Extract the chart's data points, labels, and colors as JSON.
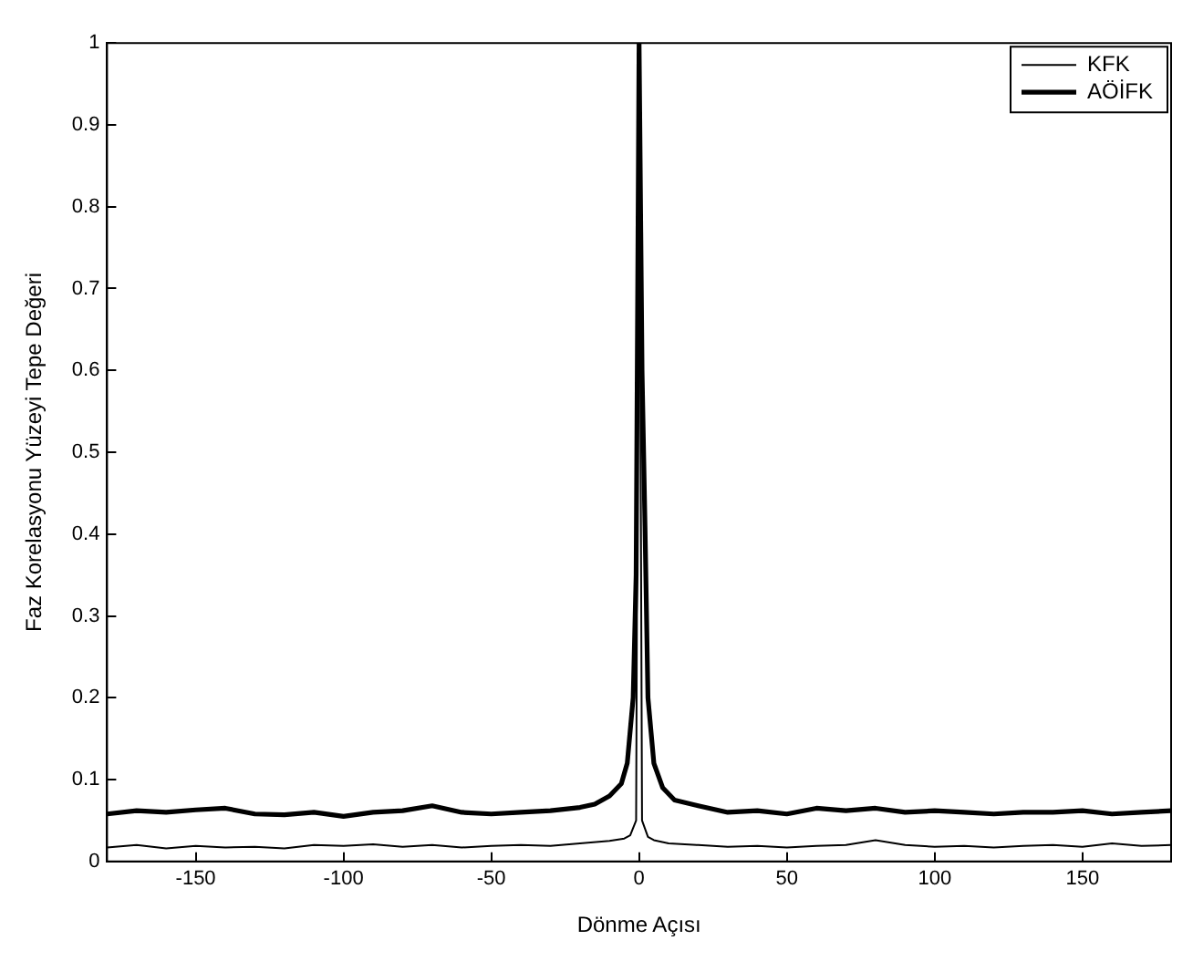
{
  "chart_data": {
    "type": "line",
    "xlabel": "Dönme Açısı",
    "ylabel": "Faz Korelasyonu Yüzeyi Tepe Değeri",
    "xlim": [
      -180,
      180
    ],
    "ylim": [
      0,
      1
    ],
    "xticks": [
      -150,
      -100,
      -50,
      0,
      50,
      100,
      150
    ],
    "yticks": [
      0,
      0.1,
      0.2,
      0.3,
      0.4,
      0.5,
      0.6,
      0.7,
      0.8,
      0.9,
      1
    ],
    "grid": false,
    "legend": "top right",
    "marker": "none",
    "line_style": "solid",
    "series": [
      {
        "name": "KFK",
        "color": "#000000",
        "x": [
          -180,
          -170,
          -160,
          -150,
          -140,
          -130,
          -120,
          -110,
          -100,
          -90,
          -80,
          -70,
          -60,
          -50,
          -40,
          -30,
          -20,
          -10,
          -5,
          -3,
          -1,
          0,
          1,
          3,
          5,
          10,
          20,
          30,
          40,
          50,
          60,
          70,
          80,
          90,
          100,
          110,
          120,
          130,
          140,
          150,
          160,
          170,
          180
        ],
        "values": [
          0.017,
          0.02,
          0.016,
          0.019,
          0.017,
          0.018,
          0.016,
          0.02,
          0.019,
          0.021,
          0.018,
          0.02,
          0.017,
          0.019,
          0.02,
          0.019,
          0.022,
          0.025,
          0.028,
          0.032,
          0.05,
          1,
          0.05,
          0.03,
          0.026,
          0.022,
          0.02,
          0.018,
          0.019,
          0.017,
          0.019,
          0.02,
          0.026,
          0.02,
          0.018,
          0.019,
          0.017,
          0.019,
          0.02,
          0.018,
          0.022,
          0.019,
          0.02
        ]
      },
      {
        "name": "AÖİFK",
        "color": "#000000",
        "x": [
          -180,
          -170,
          -160,
          -150,
          -140,
          -130,
          -120,
          -110,
          -100,
          -90,
          -80,
          -70,
          -60,
          -50,
          -40,
          -30,
          -20,
          -15,
          -10,
          -6,
          -4,
          -2,
          -1,
          0,
          1,
          2,
          3,
          5,
          8,
          12,
          20,
          30,
          40,
          50,
          60,
          70,
          80,
          90,
          100,
          110,
          120,
          130,
          140,
          150,
          160,
          170,
          180
        ],
        "values": [
          0.058,
          0.062,
          0.06,
          0.063,
          0.065,
          0.058,
          0.057,
          0.06,
          0.055,
          0.06,
          0.062,
          0.068,
          0.06,
          0.058,
          0.06,
          0.062,
          0.066,
          0.07,
          0.08,
          0.095,
          0.12,
          0.2,
          0.35,
          1,
          0.6,
          0.41,
          0.2,
          0.12,
          0.09,
          0.075,
          0.068,
          0.06,
          0.062,
          0.058,
          0.065,
          0.062,
          0.065,
          0.06,
          0.062,
          0.06,
          0.058,
          0.06,
          0.06,
          0.062,
          0.058,
          0.06,
          0.062
        ]
      }
    ]
  }
}
